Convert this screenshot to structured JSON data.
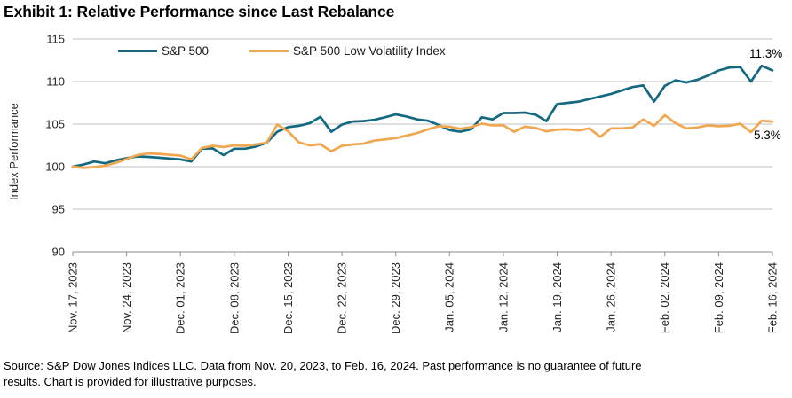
{
  "title": "Exhibit 1: Relative Performance since Last Rebalance",
  "y_axis": {
    "label": "Index Performance"
  },
  "legend": {
    "items": [
      {
        "label": "S&P 500",
        "color": "#146980"
      },
      {
        "label": "S&P 500 Low Volatility Index",
        "color": "#F0A74F"
      }
    ]
  },
  "annotations": {
    "sp500_end": "11.3%",
    "lowvol_end": "5.3%"
  },
  "source": {
    "line1": "Source: S&P Dow Jones Indices LLC. Data from Nov. 20, 2023, to Feb. 16, 2024. Past performance is no guarantee of future",
    "line2": "results. Chart is provided for illustrative purposes."
  },
  "chart_data": {
    "type": "line",
    "title": "Exhibit 1: Relative Performance since Last Rebalance",
    "ylabel": "Index Performance",
    "ylim": [
      90,
      115
    ],
    "y_ticks": [
      115,
      110,
      105,
      100,
      95,
      90
    ],
    "grid": "horizontal",
    "legend_position": "top-inside",
    "x_tick_labels": [
      "Nov. 17, 2023",
      "Nov. 24, 2023",
      "Dec. 01, 2023",
      "Dec. 08, 2023",
      "Dec. 15, 2023",
      "Dec. 22, 2023",
      "Dec. 29, 2023",
      "Jan. 05, 2024",
      "Jan. 12, 2024",
      "Jan. 19, 2024",
      "Jan. 26, 2024",
      "Feb. 02, 2024",
      "Feb. 09, 2024",
      "Feb. 16, 2024"
    ],
    "series": [
      {
        "name": "S&P 500",
        "color": "#146980",
        "end_label": "11.3%",
        "values": [
          100.0,
          100.25,
          100.6,
          100.4,
          100.75,
          101.0,
          101.2,
          101.15,
          101.05,
          100.95,
          100.85,
          100.6,
          102.1,
          102.15,
          101.35,
          102.1,
          102.1,
          102.35,
          102.8,
          104.1,
          104.65,
          104.8,
          105.1,
          105.85,
          104.1,
          104.95,
          105.3,
          105.35,
          105.5,
          105.8,
          106.15,
          105.9,
          105.55,
          105.4,
          104.9,
          104.3,
          104.1,
          104.4,
          105.8,
          105.55,
          106.3,
          106.3,
          106.35,
          106.1,
          105.35,
          107.35,
          107.5,
          107.65,
          107.95,
          108.25,
          108.55,
          108.95,
          109.35,
          109.55,
          107.65,
          109.5,
          110.15,
          109.9,
          110.2,
          110.7,
          111.3,
          111.65,
          111.7,
          110.0,
          111.85,
          111.3
        ]
      },
      {
        "name": "S&P 500 Low Volatility Index",
        "color": "#F0A74F",
        "end_label": "5.3%",
        "values": [
          100.0,
          99.85,
          99.95,
          100.1,
          100.45,
          100.9,
          101.35,
          101.55,
          101.5,
          101.4,
          101.3,
          100.85,
          102.2,
          102.45,
          102.3,
          102.5,
          102.45,
          102.6,
          102.8,
          104.95,
          104.15,
          102.85,
          102.5,
          102.65,
          101.8,
          102.45,
          102.6,
          102.7,
          103.05,
          103.2,
          103.35,
          103.65,
          103.95,
          104.4,
          104.75,
          104.7,
          104.45,
          104.65,
          105.05,
          104.85,
          104.85,
          104.1,
          104.7,
          104.55,
          104.15,
          104.35,
          104.4,
          104.25,
          104.5,
          103.5,
          104.5,
          104.5,
          104.6,
          105.55,
          104.8,
          106.05,
          105.1,
          104.5,
          104.6,
          104.85,
          104.75,
          104.8,
          105.05,
          104.05,
          105.4,
          105.3
        ]
      }
    ]
  }
}
